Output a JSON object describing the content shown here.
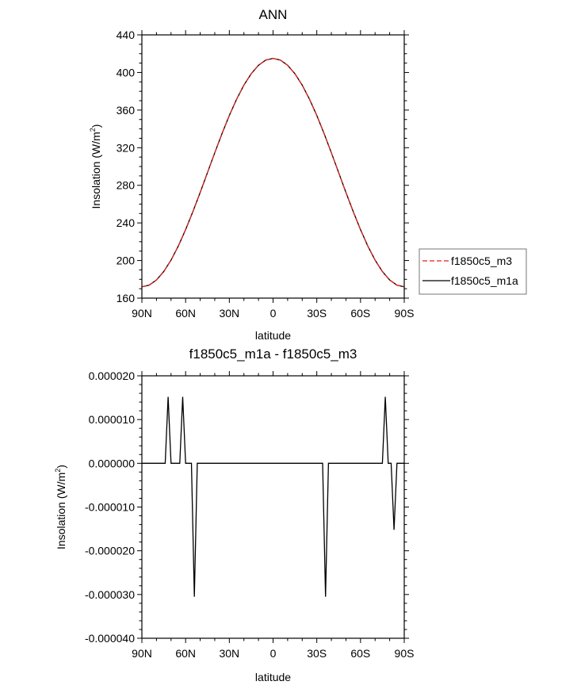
{
  "chart_data": [
    {
      "type": "line",
      "title": "ANN",
      "xlabel": "latitude",
      "ylabel": "Insolation (W/m",
      "ylabel_sup": "2",
      "ylabel_close": ")",
      "xlim": [
        90,
        -90
      ],
      "ylim": [
        160,
        440
      ],
      "xticks": [
        90,
        60,
        30,
        0,
        -30,
        -60,
        -90
      ],
      "xtick_labels": [
        "90N",
        "60N",
        "30N",
        "0",
        "30S",
        "60S",
        "90S"
      ],
      "yticks": [
        160,
        200,
        240,
        280,
        320,
        360,
        400,
        440
      ],
      "ytick_labels": [
        "160",
        "200",
        "240",
        "280",
        "320",
        "360",
        "400",
        "440"
      ],
      "legend": {
        "placement": "right",
        "entries": [
          "f1850c5_m3",
          "f1850c5_m1a"
        ]
      },
      "x": [
        90,
        85,
        80,
        75,
        70,
        65,
        60,
        55,
        50,
        45,
        40,
        35,
        30,
        25,
        20,
        15,
        10,
        5,
        0,
        -5,
        -10,
        -15,
        -20,
        -25,
        -30,
        -35,
        -40,
        -45,
        -50,
        -55,
        -60,
        -65,
        -70,
        -75,
        -80,
        -85,
        -90
      ],
      "series": [
        {
          "name": "f1850c5_m3",
          "color": "#e0201b",
          "dash": "dashed",
          "values": [
            172,
            173.8,
            179.3,
            188.3,
            200.4,
            215.4,
            232.8,
            252,
            272.4,
            293.5,
            314.6,
            335.1,
            354.3,
            371.6,
            386.6,
            398.7,
            407.7,
            413.2,
            415,
            413.2,
            407.7,
            398.7,
            386.6,
            371.6,
            354.3,
            335.1,
            314.6,
            293.5,
            272.4,
            252,
            232.8,
            215.4,
            200.4,
            188.3,
            179.3,
            173.8,
            172
          ]
        },
        {
          "name": "f1850c5_m1a",
          "color": "#000000",
          "dash": "solid",
          "values": [
            172,
            173.8,
            179.3,
            188.3,
            200.4,
            215.4,
            232.8,
            252,
            272.4,
            293.5,
            314.6,
            335.1,
            354.3,
            371.6,
            386.6,
            398.7,
            407.7,
            413.2,
            415,
            413.2,
            407.7,
            398.7,
            386.6,
            371.6,
            354.3,
            335.1,
            314.6,
            293.5,
            272.4,
            252,
            232.8,
            215.4,
            200.4,
            188.3,
            179.3,
            173.8,
            172
          ]
        }
      ]
    },
    {
      "type": "line",
      "title": "f1850c5_m1a - f1850c5_m3",
      "xlabel": "latitude",
      "ylabel": "Insolation (W/m",
      "ylabel_sup": "2",
      "ylabel_close": ")",
      "xlim": [
        90,
        -90
      ],
      "ylim": [
        -4e-05,
        2e-05
      ],
      "xticks": [
        90,
        60,
        30,
        0,
        -30,
        -60,
        -90
      ],
      "xtick_labels": [
        "90N",
        "60N",
        "30N",
        "0",
        "30S",
        "60S",
        "90S"
      ],
      "yticks": [
        -4e-05,
        -3e-05,
        -2e-05,
        -1e-05,
        0,
        1e-05,
        2e-05
      ],
      "ytick_labels": [
        "-0.000040",
        "-0.000030",
        "-0.000020",
        "-0.000010",
        "0.000000",
        "0.000010",
        "0.000020"
      ],
      "x": [
        90,
        74,
        72,
        70,
        64,
        62,
        60,
        56,
        54,
        52,
        -34,
        -36,
        -38,
        -75,
        -77,
        -79,
        -81,
        -83,
        -85,
        -90
      ],
      "series": [
        {
          "name": "difference",
          "color": "#000000",
          "values": [
            0,
            0,
            1.52e-05,
            0,
            0,
            1.52e-05,
            0,
            0,
            -3.05e-05,
            0,
            0,
            -3.05e-05,
            0,
            0,
            1.52e-05,
            0,
            0,
            -1.52e-05,
            0,
            0
          ]
        }
      ]
    }
  ]
}
